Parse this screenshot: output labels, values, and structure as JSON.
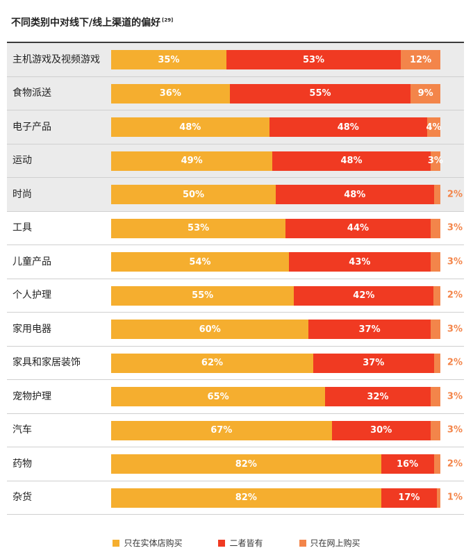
{
  "title": "不同类别中对线下/线上渠道的偏好",
  "footnote": "[29]",
  "colors": {
    "offline": "#f5ae2f",
    "both": "#f03a22",
    "online": "#f3854a"
  },
  "legend": [
    "只在实体店购买",
    "二者皆有",
    "只在网上购买"
  ],
  "chart_data": {
    "type": "bar",
    "orientation": "horizontal",
    "stacked": true,
    "title": "不同类别中对线下/线上渠道的偏好",
    "categories": [
      "主机游戏及视频游戏",
      "食物派送",
      "电子产品",
      "运动",
      "时尚",
      "工具",
      "儿童产品",
      "个人护理",
      "家用电器",
      "家具和家居装饰",
      "宠物护理",
      "汽车",
      "药物",
      "杂货"
    ],
    "series": [
      {
        "name": "只在实体店购买",
        "values": [
          35,
          36,
          48,
          49,
          50,
          53,
          54,
          55,
          60,
          62,
          65,
          67,
          82,
          82
        ]
      },
      {
        "name": "二者皆有",
        "values": [
          53,
          55,
          48,
          48,
          48,
          44,
          43,
          42,
          37,
          37,
          32,
          30,
          16,
          17
        ]
      },
      {
        "name": "只在网上购买",
        "values": [
          12,
          9,
          4,
          3,
          2,
          3,
          3,
          2,
          3,
          2,
          3,
          3,
          2,
          1
        ]
      }
    ],
    "labels": [
      [
        "35%",
        "53%",
        "12%"
      ],
      [
        "36%",
        "55%",
        "9%"
      ],
      [
        "48%",
        "48%",
        "4%"
      ],
      [
        "49%",
        "48%",
        "3%"
      ],
      [
        "50%",
        "48%",
        "2%"
      ],
      [
        "53%",
        "44%",
        "3%"
      ],
      [
        "54%",
        "43%",
        "3%"
      ],
      [
        "55%",
        "42%",
        "2%"
      ],
      [
        "60%",
        "37%",
        "3%"
      ],
      [
        "62%",
        "37%",
        "2%"
      ],
      [
        "65%",
        "32%",
        "3%"
      ],
      [
        "67%",
        "30%",
        "3%"
      ],
      [
        "82%",
        "16%",
        "2%"
      ],
      [
        "82%",
        "17%",
        "1%"
      ]
    ],
    "xlim": [
      0,
      100
    ],
    "shaded_rows": 5,
    "inside_third_label_rows": 4,
    "legend_position": "bottom"
  }
}
